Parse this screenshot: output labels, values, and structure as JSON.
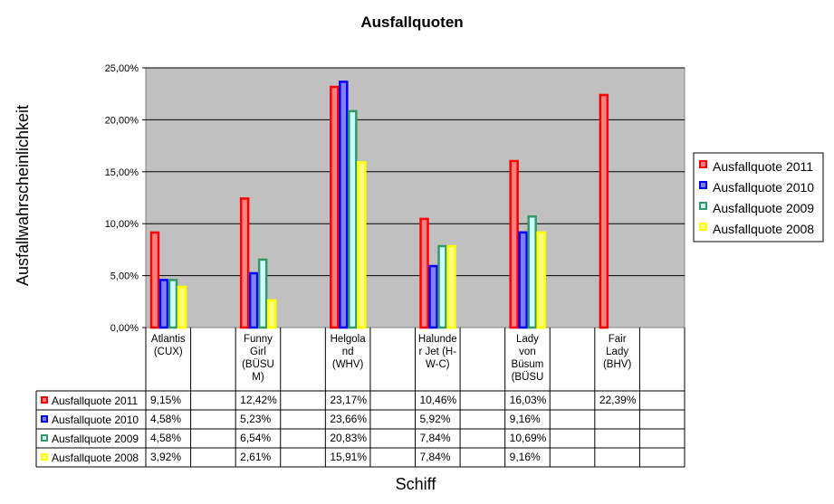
{
  "chart_data": {
    "type": "bar",
    "title": "Ausfallquoten",
    "xlabel": "Schiff",
    "ylabel": "Ausfallwahrscheinlichkeit",
    "ylim": [
      0,
      25
    ],
    "yticks": [
      "0,00%",
      "5,00%",
      "10,00%",
      "15,00%",
      "20,00%",
      "25,00%"
    ],
    "grid": true,
    "legend_position": "right",
    "categories": [
      [
        "Atlantis",
        "(CUX)"
      ],
      [
        "Funny",
        "Girl",
        "(BÜSU",
        "M)"
      ],
      [
        "Helgola",
        "nd",
        "(WHV)"
      ],
      [
        "Halunde",
        "r Jet (H-",
        "W-C)"
      ],
      [
        "Lady",
        "von",
        "Büsum",
        "(BÜSU"
      ],
      [
        "Fair",
        "Lady",
        "(BHV)"
      ]
    ],
    "series": [
      {
        "name": "Ausfallquote 2011",
        "color": "#ff0000",
        "fill": "#ff8080",
        "values": [
          9.15,
          12.42,
          23.17,
          10.46,
          16.03,
          22.39
        ],
        "labels": [
          "9,15%",
          "12,42%",
          "23,17%",
          "10,46%",
          "16,03%",
          "22,39%"
        ]
      },
      {
        "name": "Ausfallquote 2010",
        "color": "#0000ff",
        "fill": "#8080ff",
        "values": [
          4.58,
          5.23,
          23.66,
          5.92,
          9.16,
          null
        ],
        "labels": [
          "4,58%",
          "5,23%",
          "23,66%",
          "5,92%",
          "9,16%",
          ""
        ]
      },
      {
        "name": "Ausfallquote 2009",
        "color": "#339966",
        "fill": "#ccffff",
        "values": [
          4.58,
          6.54,
          20.83,
          7.84,
          10.69,
          null
        ],
        "labels": [
          "4,58%",
          "6,54%",
          "20,83%",
          "7,84%",
          "10,69%",
          ""
        ]
      },
      {
        "name": "Ausfallquote 2008",
        "color": "#ffff00",
        "fill": "#ffff80",
        "values": [
          3.92,
          2.61,
          15.91,
          7.84,
          9.16,
          null
        ],
        "labels": [
          "3,92%",
          "2,61%",
          "15,91%",
          "7,84%",
          "9,16%",
          ""
        ]
      }
    ],
    "plot_background": "#c0c0c0"
  }
}
